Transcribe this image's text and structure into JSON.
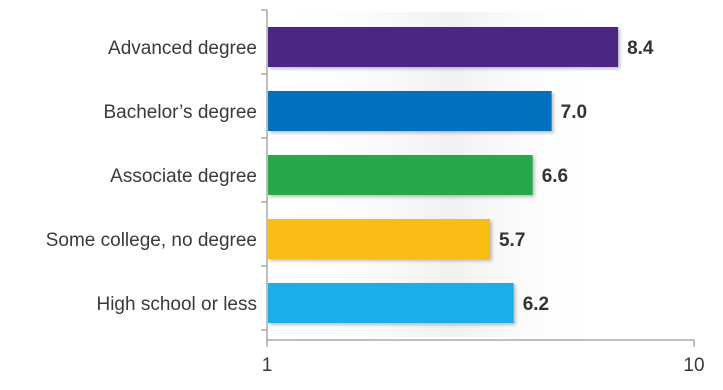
{
  "chart_data": {
    "type": "bar",
    "orientation": "horizontal",
    "categories": [
      "Advanced degree",
      "Bachelor’s degree",
      "Associate degree",
      "Some college, no degree",
      "High school or less"
    ],
    "values": [
      8.4,
      7.0,
      6.6,
      5.7,
      6.2
    ],
    "value_labels": [
      "8.4",
      "7.0",
      "6.6",
      "5.7",
      "6.2"
    ],
    "colors": [
      "#4B2885",
      "#0070BF",
      "#25A84B",
      "#FBBC14",
      "#1AADEB"
    ],
    "xlim": [
      1,
      10
    ],
    "x_ticks": [
      1,
      10
    ],
    "x_tick_labels": [
      "1",
      "10"
    ],
    "title": "",
    "xlabel": "",
    "ylabel": "",
    "grid": false,
    "legend": "none"
  }
}
